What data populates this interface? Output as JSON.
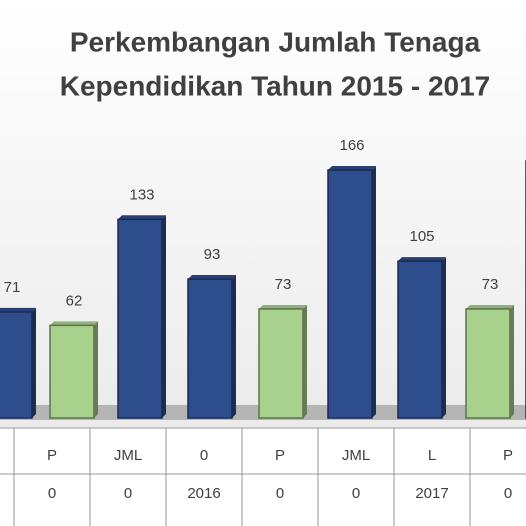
{
  "chart_data": {
    "type": "bar",
    "title": [
      "Perkembangan Jumlah Tenaga",
      "Kependidikan Tahun 2015 - 2017"
    ],
    "values": [
      71,
      62,
      133,
      93,
      73,
      166,
      105,
      73,
      172
    ],
    "colors": [
      "#2e4d8c",
      "#a9d18e",
      "#2e4d8c",
      "#2e4d8c",
      "#a9d18e",
      "#2e4d8c",
      "#2e4d8c",
      "#a9d18e",
      "#2e4d8c"
    ],
    "ylim": [
      0,
      180
    ],
    "table_rows": [
      [
        "P",
        "JML",
        "0",
        "P",
        "JML",
        "L",
        "P"
      ],
      [
        "0",
        "0",
        "2016",
        "0",
        "0",
        "2017",
        "0"
      ]
    ]
  }
}
